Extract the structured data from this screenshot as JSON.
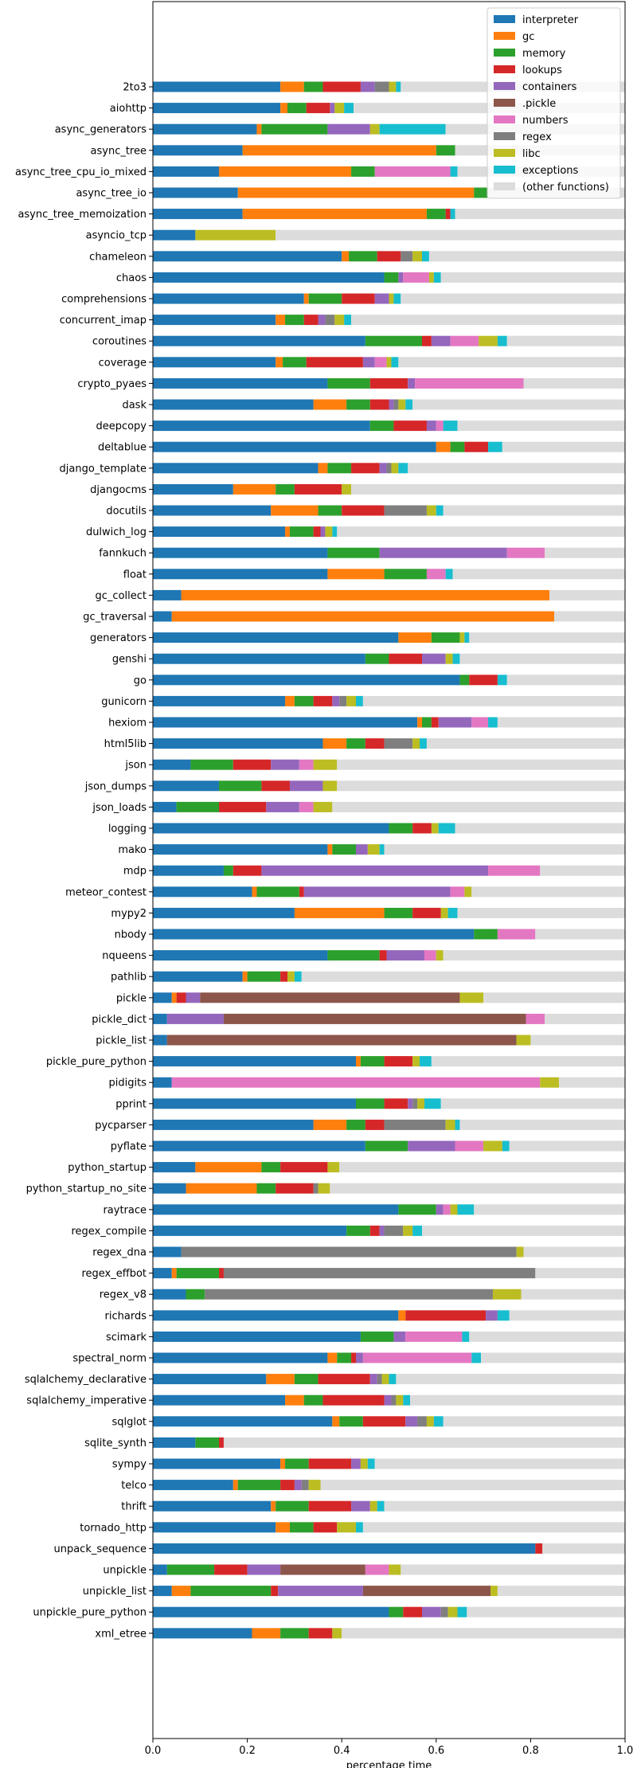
{
  "chart_data": {
    "type": "bar",
    "orientation": "horizontal",
    "stacked": true,
    "xlabel": "percentage time",
    "ylabel": "",
    "xlim": [
      0,
      1
    ],
    "xticks": [
      "0.0",
      "0.2",
      "0.4",
      "0.6",
      "0.8",
      "1.0"
    ],
    "grid": false,
    "legend_position": "top-right",
    "categories": [
      "2to3",
      "aiohttp",
      "async_generators",
      "async_tree",
      "async_tree_cpu_io_mixed",
      "async_tree_io",
      "async_tree_memoization",
      "asyncio_tcp",
      "chameleon",
      "chaos",
      "comprehensions",
      "concurrent_imap",
      "coroutines",
      "coverage",
      "crypto_pyaes",
      "dask",
      "deepcopy",
      "deltablue",
      "django_template",
      "djangocms",
      "docutils",
      "dulwich_log",
      "fannkuch",
      "float",
      "gc_collect",
      "gc_traversal",
      "generators",
      "genshi",
      "go",
      "gunicorn",
      "hexiom",
      "html5lib",
      "json",
      "json_dumps",
      "json_loads",
      "logging",
      "mako",
      "mdp",
      "meteor_contest",
      "mypy2",
      "nbody",
      "nqueens",
      "pathlib",
      "pickle",
      "pickle_dict",
      "pickle_list",
      "pickle_pure_python",
      "pidigits",
      "pprint",
      "pycparser",
      "pyflate",
      "python_startup",
      "python_startup_no_site",
      "raytrace",
      "regex_compile",
      "regex_dna",
      "regex_effbot",
      "regex_v8",
      "richards",
      "scimark",
      "spectral_norm",
      "sqlalchemy_declarative",
      "sqlalchemy_imperative",
      "sqlglot",
      "sqlite_synth",
      "sympy",
      "telco",
      "thrift",
      "tornado_http",
      "unpack_sequence",
      "unpickle",
      "unpickle_list",
      "unpickle_pure_python",
      "xml_etree"
    ],
    "series": [
      {
        "name": "interpreter",
        "color": "#1f77b4",
        "values": [
          0.27,
          0.27,
          0.22,
          0.19,
          0.14,
          0.18,
          0.19,
          0.09,
          0.4,
          0.49,
          0.32,
          0.26,
          0.45,
          0.26,
          0.37,
          0.34,
          0.46,
          0.6,
          0.35,
          0.17,
          0.25,
          0.28,
          0.37,
          0.37,
          0.06,
          0.04,
          0.52,
          0.45,
          0.65,
          0.28,
          0.56,
          0.36,
          0.08,
          0.14,
          0.05,
          0.5,
          0.37,
          0.15,
          0.21,
          0.3,
          0.68,
          0.37,
          0.19,
          0.04,
          0.03,
          0.03,
          0.43,
          0.04,
          0.43,
          0.34,
          0.45,
          0.09,
          0.07,
          0.52,
          0.41,
          0.06,
          0.04,
          0.07,
          0.52,
          0.44,
          0.37,
          0.24,
          0.28,
          0.38,
          0.09,
          0.27,
          0.17,
          0.25,
          0.26,
          0.81,
          0.03,
          0.04,
          0.5,
          0.21
        ]
      },
      {
        "name": "gc",
        "color": "#ff7f0e",
        "values": [
          0.05,
          0.015,
          0.01,
          0.41,
          0.28,
          0.5,
          0.39,
          0,
          0.015,
          0,
          0.01,
          0.02,
          0,
          0.015,
          0,
          0.07,
          0,
          0.03,
          0.02,
          0.09,
          0.1,
          0.01,
          0,
          0.12,
          0.78,
          0.81,
          0.07,
          0,
          0,
          0.02,
          0.01,
          0.05,
          0,
          0,
          0,
          0,
          0.01,
          0,
          0.01,
          0.19,
          0,
          0,
          0.01,
          0.01,
          0,
          0,
          0.01,
          0,
          0,
          0.07,
          0,
          0.14,
          0.15,
          0,
          0,
          0,
          0.01,
          0,
          0.015,
          0,
          0.02,
          0.06,
          0.04,
          0.015,
          0,
          0.01,
          0.01,
          0.01,
          0.03,
          0,
          0,
          0.04,
          0,
          0.06
        ]
      },
      {
        "name": "memory",
        "color": "#2ca02c",
        "values": [
          0.04,
          0.04,
          0.14,
          0.04,
          0.05,
          0.03,
          0.04,
          0,
          0.06,
          0.03,
          0.07,
          0.04,
          0.12,
          0.05,
          0.09,
          0.05,
          0.05,
          0.03,
          0.05,
          0.04,
          0.05,
          0.05,
          0.11,
          0.09,
          0,
          0,
          0.06,
          0.05,
          0.02,
          0.04,
          0.02,
          0.04,
          0.09,
          0.09,
          0.09,
          0.05,
          0.05,
          0.02,
          0.09,
          0.06,
          0.05,
          0.11,
          0.07,
          0,
          0,
          0,
          0.05,
          0,
          0.06,
          0.04,
          0.09,
          0.04,
          0.04,
          0.08,
          0.05,
          0,
          0.09,
          0.04,
          0,
          0.07,
          0.03,
          0.05,
          0.04,
          0.05,
          0.05,
          0.05,
          0.09,
          0.07,
          0.05,
          0,
          0.1,
          0.17,
          0.03,
          0.06
        ]
      },
      {
        "name": "lookups",
        "color": "#d62728",
        "values": [
          0.08,
          0.05,
          0,
          0,
          0,
          0,
          0.01,
          0,
          0.05,
          0,
          0.07,
          0.03,
          0.02,
          0.12,
          0.08,
          0.04,
          0.07,
          0.05,
          0.06,
          0.1,
          0.09,
          0.015,
          0,
          0,
          0,
          0,
          0,
          0.07,
          0.06,
          0.04,
          0.015,
          0.04,
          0.08,
          0.06,
          0.1,
          0.04,
          0,
          0.06,
          0.01,
          0.06,
          0,
          0.015,
          0.015,
          0.02,
          0,
          0,
          0.06,
          0,
          0.05,
          0.04,
          0,
          0.1,
          0.08,
          0,
          0.02,
          0,
          0.01,
          0,
          0.17,
          0,
          0.01,
          0.11,
          0.13,
          0.09,
          0.01,
          0.09,
          0.03,
          0.09,
          0.05,
          0.015,
          0.07,
          0.015,
          0.04,
          0.05
        ]
      },
      {
        "name": "containers",
        "color": "#9467bd",
        "values": [
          0.03,
          0.01,
          0.09,
          0,
          0,
          0,
          0,
          0,
          0,
          0.01,
          0.03,
          0.015,
          0.04,
          0.025,
          0.015,
          0.01,
          0.02,
          0,
          0.015,
          0,
          0,
          0.01,
          0.27,
          0,
          0,
          0,
          0,
          0.05,
          0,
          0.015,
          0.07,
          0,
          0.06,
          0.07,
          0.07,
          0,
          0.025,
          0.48,
          0.31,
          0,
          0,
          0.08,
          0,
          0.03,
          0.12,
          0,
          0,
          0,
          0.01,
          0,
          0.1,
          0,
          0,
          0.015,
          0.01,
          0,
          0,
          0,
          0.025,
          0.025,
          0.015,
          0.015,
          0.015,
          0.025,
          0,
          0.02,
          0.015,
          0.04,
          0,
          0,
          0.07,
          0.18,
          0.04,
          0
        ]
      },
      {
        "name": ".pickle",
        "color": "#8c564b",
        "values": [
          0,
          0,
          0,
          0,
          0,
          0,
          0,
          0,
          0,
          0,
          0,
          0,
          0,
          0,
          0,
          0,
          0,
          0,
          0,
          0,
          0,
          0,
          0,
          0,
          0,
          0,
          0,
          0,
          0,
          0,
          0,
          0,
          0,
          0,
          0,
          0,
          0,
          0,
          0,
          0,
          0,
          0,
          0,
          0.55,
          0.64,
          0.74,
          0,
          0,
          0,
          0,
          0,
          0,
          0,
          0,
          0,
          0,
          0,
          0,
          0,
          0,
          0,
          0,
          0,
          0,
          0,
          0,
          0,
          0,
          0,
          0,
          0.18,
          0.27,
          0,
          0
        ]
      },
      {
        "name": "numbers",
        "color": "#e377c2",
        "values": [
          0,
          0,
          0,
          0,
          0.16,
          0,
          0,
          0,
          0,
          0.055,
          0,
          0,
          0.06,
          0.025,
          0.23,
          0,
          0.015,
          0,
          0,
          0,
          0,
          0,
          0.08,
          0.04,
          0,
          0,
          0,
          0,
          0,
          0,
          0.035,
          0,
          0.03,
          0,
          0.03,
          0,
          0,
          0.11,
          0.03,
          0,
          0.08,
          0.025,
          0,
          0,
          0.04,
          0,
          0,
          0.78,
          0,
          0,
          0.06,
          0,
          0,
          0.015,
          0,
          0,
          0,
          0,
          0,
          0.12,
          0.23,
          0,
          0,
          0,
          0,
          0,
          0,
          0,
          0,
          0,
          0.05,
          0,
          0,
          0
        ]
      },
      {
        "name": "regex",
        "color": "#7f7f7f",
        "values": [
          0.03,
          0,
          0,
          0,
          0,
          0,
          0,
          0,
          0.025,
          0,
          0,
          0.02,
          0,
          0,
          0,
          0.01,
          0,
          0,
          0.01,
          0,
          0.09,
          0,
          0,
          0,
          0,
          0,
          0,
          0,
          0,
          0.015,
          0,
          0.06,
          0,
          0,
          0,
          0,
          0,
          0,
          0,
          0,
          0,
          0,
          0,
          0,
          0,
          0,
          0,
          0,
          0.01,
          0.13,
          0,
          0,
          0.01,
          0,
          0.04,
          0.71,
          0.66,
          0.61,
          0,
          0,
          0,
          0.01,
          0.01,
          0.02,
          0,
          0,
          0.015,
          0,
          0,
          0,
          0,
          0,
          0.015,
          0
        ]
      },
      {
        "name": "libc",
        "color": "#bcbd22",
        "values": [
          0.015,
          0.02,
          0.02,
          0,
          0,
          0,
          0,
          0.17,
          0.02,
          0.01,
          0.01,
          0.02,
          0.04,
          0.01,
          0,
          0.015,
          0,
          0,
          0.015,
          0.02,
          0.02,
          0.015,
          0,
          0,
          0,
          0,
          0.01,
          0.015,
          0,
          0.02,
          0,
          0.015,
          0.05,
          0.03,
          0.04,
          0.015,
          0.025,
          0,
          0.015,
          0.015,
          0,
          0.015,
          0.015,
          0.05,
          0,
          0.03,
          0.015,
          0.04,
          0.015,
          0.02,
          0.04,
          0.025,
          0.025,
          0.015,
          0.02,
          0.015,
          0,
          0.06,
          0,
          0,
          0,
          0.015,
          0.015,
          0.015,
          0,
          0.015,
          0.025,
          0.015,
          0.04,
          0,
          0.025,
          0.015,
          0.02,
          0.02
        ]
      },
      {
        "name": "exceptions",
        "color": "#17becf",
        "values": [
          0.01,
          0.02,
          0.14,
          0,
          0.015,
          0,
          0.01,
          0,
          0.015,
          0.015,
          0.015,
          0.015,
          0.02,
          0.015,
          0,
          0.015,
          0.03,
          0.03,
          0.02,
          0,
          0.015,
          0.01,
          0,
          0.015,
          0,
          0,
          0.01,
          0.015,
          0.02,
          0.015,
          0.02,
          0.015,
          0,
          0,
          0,
          0.035,
          0.01,
          0,
          0,
          0.02,
          0,
          0,
          0.015,
          0,
          0,
          0,
          0.025,
          0,
          0.035,
          0.01,
          0.015,
          0,
          0,
          0.035,
          0.02,
          0,
          0,
          0,
          0.025,
          0.015,
          0.02,
          0.015,
          0.015,
          0.02,
          0,
          0.015,
          0,
          0.015,
          0.015,
          0,
          0,
          0,
          0.02,
          0
        ]
      }
    ],
    "other_label": "(other functions)",
    "other_color": "#dcdcdc"
  }
}
